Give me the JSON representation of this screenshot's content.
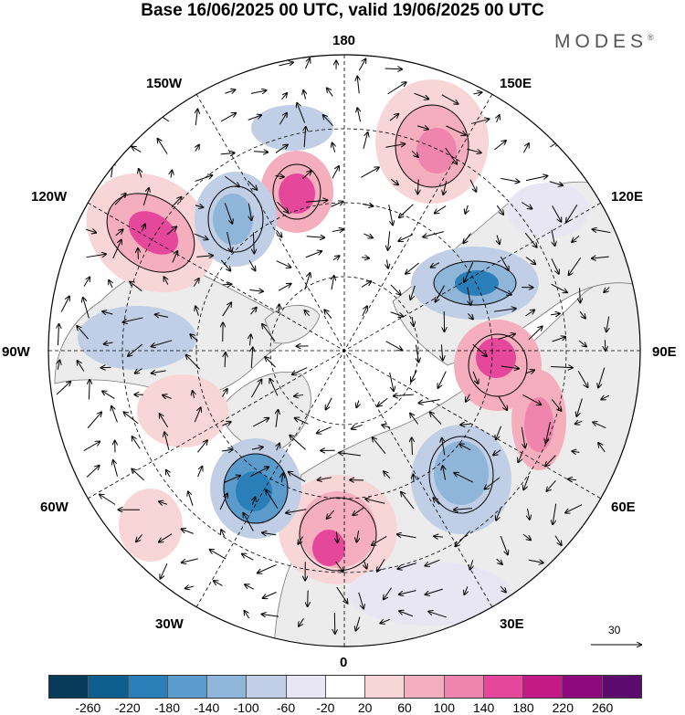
{
  "header": {
    "title": "Base 16/06/2025 00 UTC, valid 19/06/2025 00 UTC",
    "brand": "MODES",
    "brand_mark": "®"
  },
  "map": {
    "projection": "north-polar-stereographic",
    "longitude_labels": {
      "lon_180": "180",
      "lon_150e": "150E",
      "lon_120e": "120E",
      "lon_90e": "90E",
      "lon_60e": "60E",
      "lon_30e": "30E",
      "lon_0": "0",
      "lon_30w": "30W",
      "lon_60w": "60W",
      "lon_90w": "90W",
      "lon_120w": "120W",
      "lon_150w": "150W"
    },
    "reference_vector_label": "30",
    "colors": {
      "land": "#ececec",
      "coast": "#666666",
      "grid": "#000000"
    }
  },
  "colorbar": {
    "tick_labels": [
      "-260",
      "-220",
      "-180",
      "-140",
      "-100",
      "-60",
      "-20",
      "20",
      "60",
      "100",
      "140",
      "180",
      "220",
      "260"
    ],
    "colors": [
      "#083a5c",
      "#0d5e8f",
      "#2b7fb9",
      "#5a9bcb",
      "#8fb5d9",
      "#c1cfe6",
      "#e8e6f3",
      "#ffffff",
      "#f8d6d8",
      "#f4aebe",
      "#ef85ad",
      "#e5479a",
      "#c41a85",
      "#8e0a7c",
      "#5c0a6e"
    ]
  }
}
